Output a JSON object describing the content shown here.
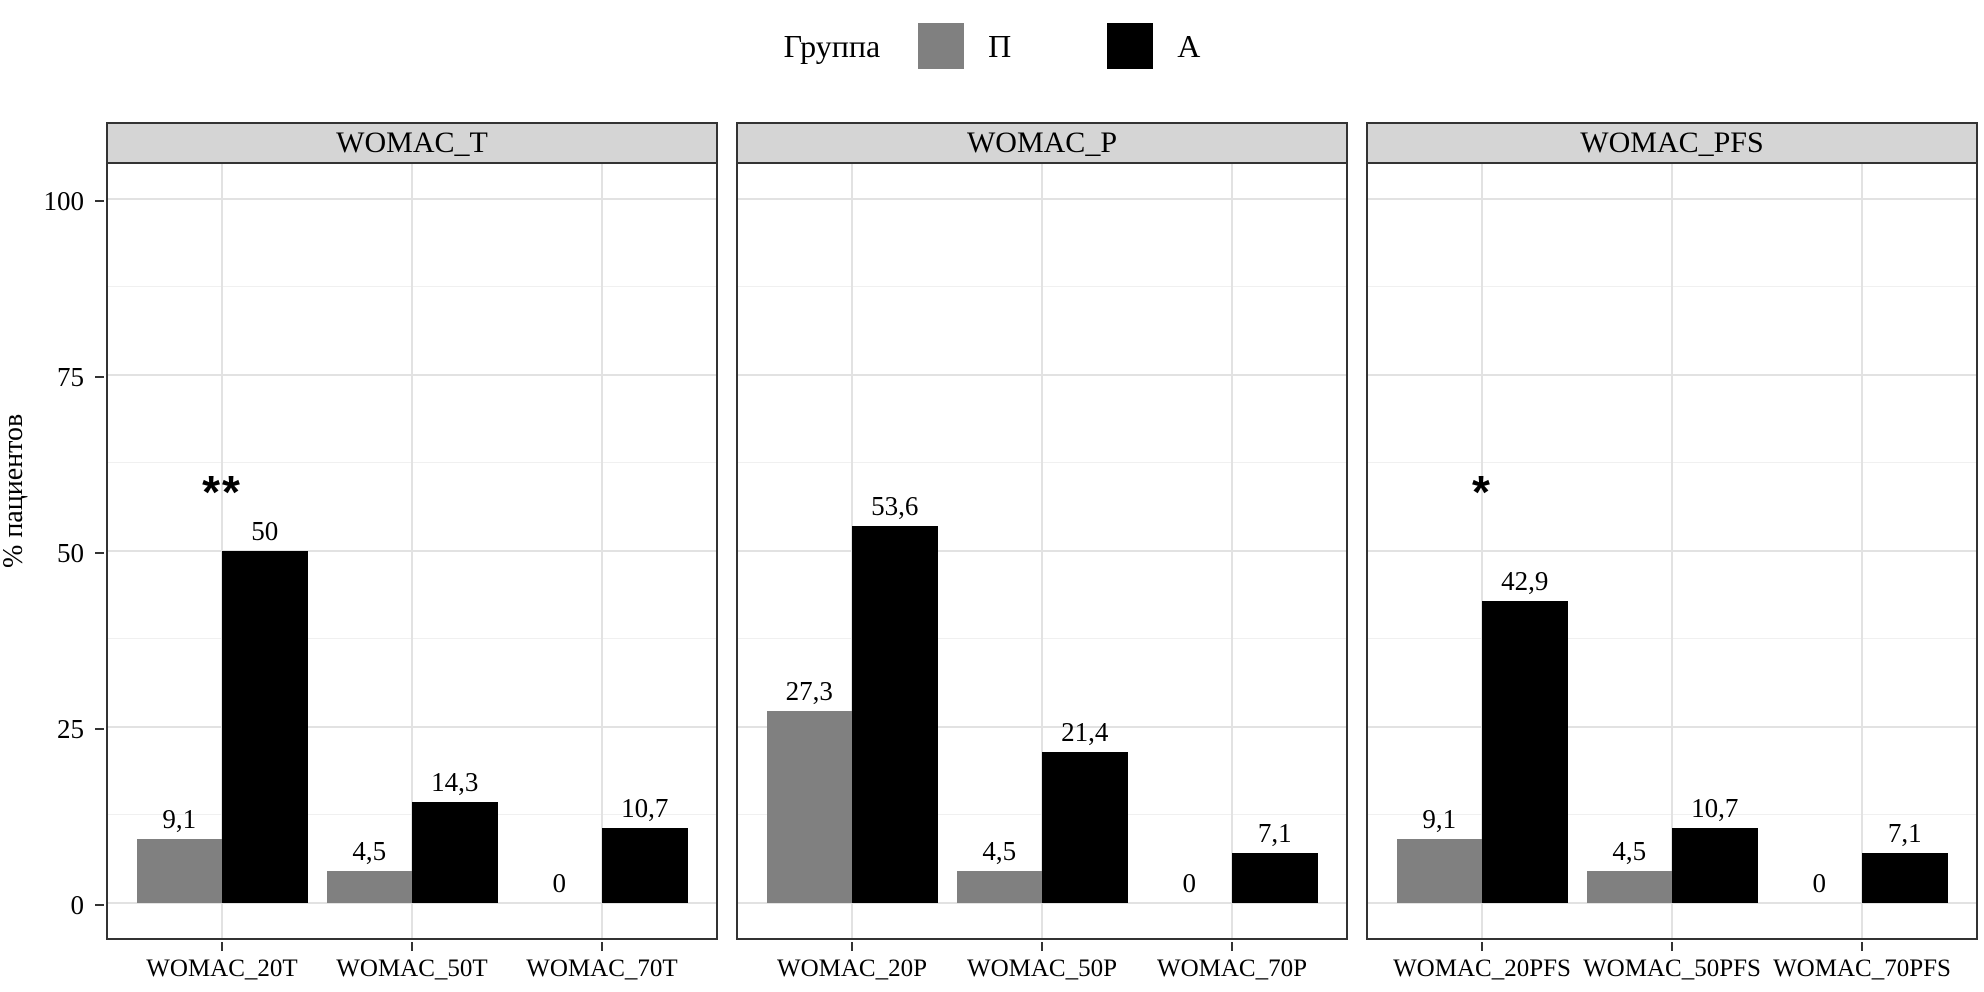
{
  "legend": {
    "title": "Группа",
    "items": [
      {
        "label": "П",
        "color": "#808080"
      },
      {
        "label": "A",
        "color": "#000000"
      }
    ]
  },
  "y_axis": {
    "title": "% пациентов",
    "tick_labels": [
      "0",
      "25",
      "50",
      "75",
      "100"
    ],
    "tick_values": [
      0,
      25,
      50,
      75,
      100
    ]
  },
  "chart_data": {
    "type": "bar",
    "title": "",
    "xlabel": "",
    "ylabel": "% пациентов",
    "legend_title": "Группа",
    "legend_position": "top",
    "grid": "major and minor horizontal, major vertical at categories",
    "series_names": [
      "П",
      "A"
    ],
    "series_colors": [
      "#808080",
      "#000000"
    ],
    "ylim": [
      0,
      100
    ],
    "y_panel_range": [
      -5,
      105
    ],
    "y_major_gridlines": [
      0,
      25,
      50,
      75,
      100
    ],
    "y_minor_gridlines": [
      12.5,
      37.5,
      62.5,
      87.5
    ],
    "decimal_separator": ",",
    "panels": [
      {
        "facet": "WOMAC_T",
        "categories": [
          "WOMAC_20T",
          "WOMAC_50T",
          "WOMAC_70T"
        ],
        "series": [
          {
            "name": "П",
            "values": [
              9.1,
              4.5,
              0
            ]
          },
          {
            "name": "A",
            "values": [
              50,
              14.3,
              10.7
            ]
          }
        ],
        "value_labels": [
          [
            "9,1",
            "4,5",
            "0"
          ],
          [
            "50",
            "14,3",
            "10,7"
          ]
        ],
        "annotations": [
          {
            "text": "**",
            "category_index": 0,
            "y": 56
          }
        ]
      },
      {
        "facet": "WOMAC_P",
        "categories": [
          "WOMAC_20P",
          "WOMAC_50P",
          "WOMAC_70P"
        ],
        "series": [
          {
            "name": "П",
            "values": [
              27.3,
              4.5,
              0
            ]
          },
          {
            "name": "A",
            "values": [
              53.6,
              21.4,
              7.1
            ]
          }
        ],
        "value_labels": [
          [
            "27,3",
            "4,5",
            "0"
          ],
          [
            "53,6",
            "21,4",
            "7,1"
          ]
        ],
        "annotations": []
      },
      {
        "facet": "WOMAC_PFS",
        "categories": [
          "WOMAC_20PFS",
          "WOMAC_50PFS",
          "WOMAC_70PFS"
        ],
        "series": [
          {
            "name": "П",
            "values": [
              9.1,
              4.5,
              0
            ]
          },
          {
            "name": "A",
            "values": [
              42.9,
              10.7,
              7.1
            ]
          }
        ],
        "value_labels": [
          [
            "9,1",
            "4,5",
            "0"
          ],
          [
            "42,9",
            "10,7",
            "7,1"
          ]
        ],
        "annotations": [
          {
            "text": "*",
            "category_index": 0,
            "y": 56
          }
        ]
      }
    ]
  },
  "style": {
    "strip_fill": "#d5d5d5",
    "panel_border": "#333333",
    "grid_major": "#e2e2e2",
    "grid_minor": "#f0f0f0",
    "tick_color": "#333333",
    "background": "#ffffff"
  }
}
